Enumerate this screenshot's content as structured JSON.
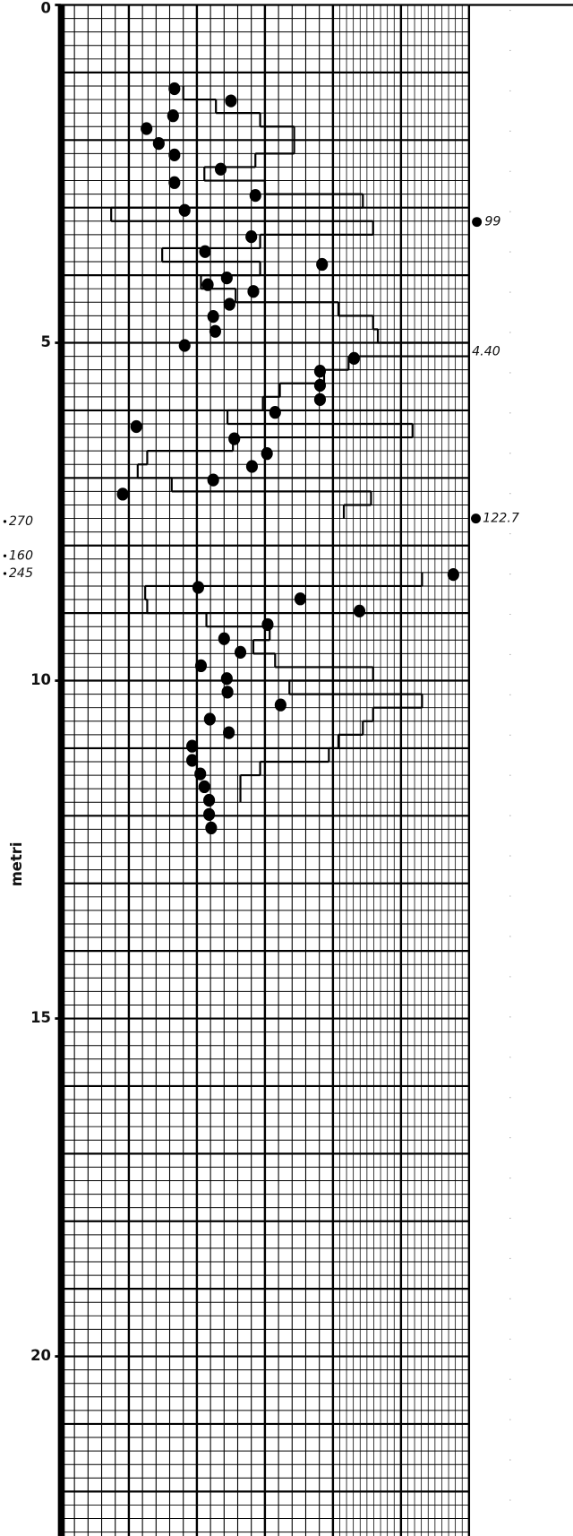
{
  "chart_data": {
    "type": "scatter-step",
    "y_label": "metri",
    "ylim": [
      0,
      22.6
    ],
    "yticks": [
      0,
      5,
      10,
      15,
      20
    ],
    "xlim": [
      0,
      60
    ],
    "invert_y": true,
    "grid": true,
    "series": [
      {
        "color": "#000000",
        "x": [
          16.7,
          25,
          16.5,
          12.6,
          14.4,
          16.7,
          23.5,
          16.7,
          28.6,
          18.2,
          28,
          21.2,
          38.4,
          24.4,
          21.6,
          28.3,
          24.8,
          22.4,
          22.7,
          18.2,
          43.1,
          38.1,
          38.1,
          38.1,
          31.5,
          11.1,
          25.5,
          30.3,
          28.1,
          22.4,
          9.1,
          57.7,
          20.2,
          35.2,
          43.9,
          30.4,
          24,
          26.4,
          20.6,
          24.4,
          24.5,
          32.3,
          21.9,
          24.7,
          19.3,
          19.3,
          20.5,
          21.1,
          21.8,
          21.8,
          22.1
        ],
        "y": [
          1.24,
          1.42,
          1.64,
          1.83,
          2.05,
          2.22,
          2.43,
          2.63,
          2.82,
          3.04,
          3.43,
          3.65,
          3.84,
          4.04,
          4.14,
          4.24,
          4.43,
          4.61,
          4.83,
          5.04,
          5.23,
          5.42,
          5.63,
          5.84,
          6.03,
          6.24,
          6.42,
          6.64,
          6.83,
          7.03,
          7.24,
          8.43,
          8.62,
          8.79,
          8.97,
          9.17,
          9.38,
          9.58,
          9.78,
          9.97,
          10.17,
          10.36,
          10.57,
          10.77,
          10.97,
          11.18,
          11.38,
          11.57,
          11.77,
          11.98,
          12.18
        ]
      },
      {
        "type": "step",
        "color": "#000000",
        "bins": [
          1.2,
          1.4,
          1.6,
          1.8,
          2.0,
          2.2,
          2.4,
          2.6,
          2.8,
          3.0,
          3.2,
          3.4,
          3.6,
          3.8,
          4.0,
          4.2,
          4.4,
          4.6,
          4.8,
          5.0,
          5.2,
          5.4,
          5.6,
          5.8,
          6.0,
          6.2,
          6.4,
          6.6,
          6.8,
          7.0,
          7.2,
          7.4,
          7.6,
          8.4,
          8.6,
          8.8,
          9.0,
          9.2,
          9.4,
          9.6,
          9.8,
          10.0,
          10.2,
          10.4,
          10.6,
          10.8,
          11.0,
          11.2,
          11.4,
          11.6,
          11.8
        ],
        "values": [
          18.0,
          22.8,
          29.3,
          34.3,
          34.3,
          28.6,
          21.1,
          30.0,
          44.4,
          7.4,
          45.9,
          29.3,
          14.9,
          29.3,
          20.6,
          25.7,
          40.8,
          45.9,
          46.6,
          60.0,
          42.3,
          38.7,
          32.2,
          29.7,
          24.5,
          51.7,
          25.3,
          12.7,
          11.3,
          16.3,
          45.6,
          41.6,
          null,
          53.1,
          12.4,
          12.7,
          21.4,
          30.7,
          28.3,
          31.5,
          45.9,
          33.6,
          53.1,
          45.9,
          44.4,
          40.8,
          39.4,
          29.3,
          26.4,
          26.4
        ]
      }
    ],
    "annotations": [
      "99",
      "4.40",
      "122.7",
      "270",
      "160",
      "245"
    ]
  }
}
